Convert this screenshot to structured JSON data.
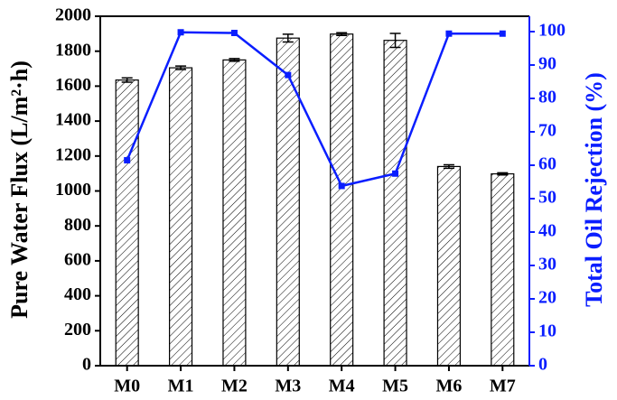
{
  "chart_data": {
    "type": "bar",
    "categories": [
      "M0",
      "M1",
      "M2",
      "M3",
      "M4",
      "M5",
      "M6",
      "M7"
    ],
    "values": [
      1635,
      1705,
      1750,
      1875,
      1898,
      1862,
      1140,
      1098
    ],
    "errors": [
      12,
      10,
      8,
      22,
      8,
      40,
      10,
      6
    ],
    "color": "#000000",
    "ylabel": "Pure Water Flux (L/m²·h)",
    "ylim": [
      0,
      2000
    ],
    "yticks": [
      0,
      200,
      400,
      600,
      800,
      1000,
      1200,
      1400,
      1600,
      1800,
      2000
    ],
    "y2label": "Total Oil Rejection (%)",
    "y2lim": [
      0,
      104.6
    ],
    "y2ticks": [
      0,
      10,
      20,
      30,
      40,
      50,
      60,
      70,
      80,
      90,
      100
    ],
    "y2_series": {
      "type": "line",
      "axis": "y2",
      "color": "#0a1eff",
      "values": [
        61.5,
        99.8,
        99.6,
        87,
        53.8,
        57.5,
        99.4,
        99.4
      ]
    }
  }
}
